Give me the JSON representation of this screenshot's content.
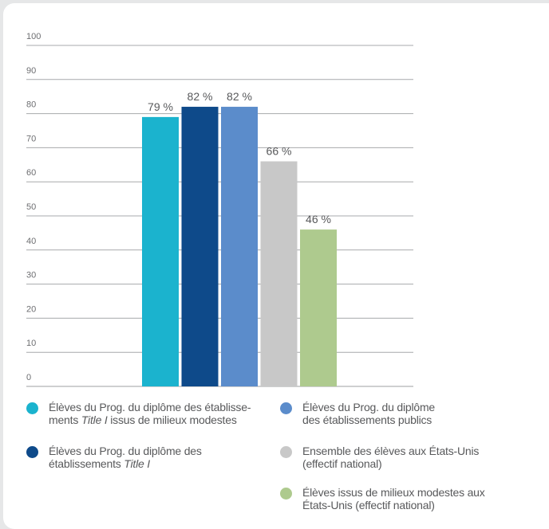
{
  "chart_data": {
    "type": "bar",
    "categories": [
      "Élèves du Prog. du diplôme des établissements Title I issus de milieux modestes",
      "Élèves du Prog. du diplôme des établissements Title I",
      "Élèves du Prog. du diplôme des établissements publics",
      "Ensemble des élèves aux États-Unis (effectif national)",
      "Élèves issus de milieux modestes aux États-Unis (effectif national)"
    ],
    "values": [
      79,
      82,
      82,
      66,
      46
    ],
    "value_labels": [
      "79 %",
      "82 %",
      "82 %",
      "66 %",
      "46 %"
    ],
    "colors": [
      "#1bb3ce",
      "#0e4a8a",
      "#5b8ccb",
      "#c8c8c8",
      "#aeca8e"
    ],
    "yticks": [
      "0",
      "10",
      "20",
      "30",
      "40",
      "50",
      "60",
      "70",
      "80",
      "90",
      "100"
    ],
    "ylim": [
      0,
      100
    ],
    "grid": true,
    "legend_position": "bottom"
  },
  "legend": {
    "item1_line1_a": "Élèves du Prog. du diplôme des établisse-",
    "item1_line2_a": "ments ",
    "item1_line2_italic": "Title I",
    "item1_line2_b": " issus de milieux modestes",
    "item2_line1": "Élèves du Prog. du diplôme des",
    "item2_line2_a": "établissements ",
    "item2_line2_italic": "Title I",
    "item3_line1": "Élèves du Prog. du diplôme",
    "item3_line2": "des établissements publics",
    "item4_line1": "Ensemble des élèves aux États-Unis",
    "item4_line2": "(effectif national)",
    "item5_line1": "Élèves issus de milieux modestes aux",
    "item5_line2": "États-Unis (effectif national)"
  }
}
